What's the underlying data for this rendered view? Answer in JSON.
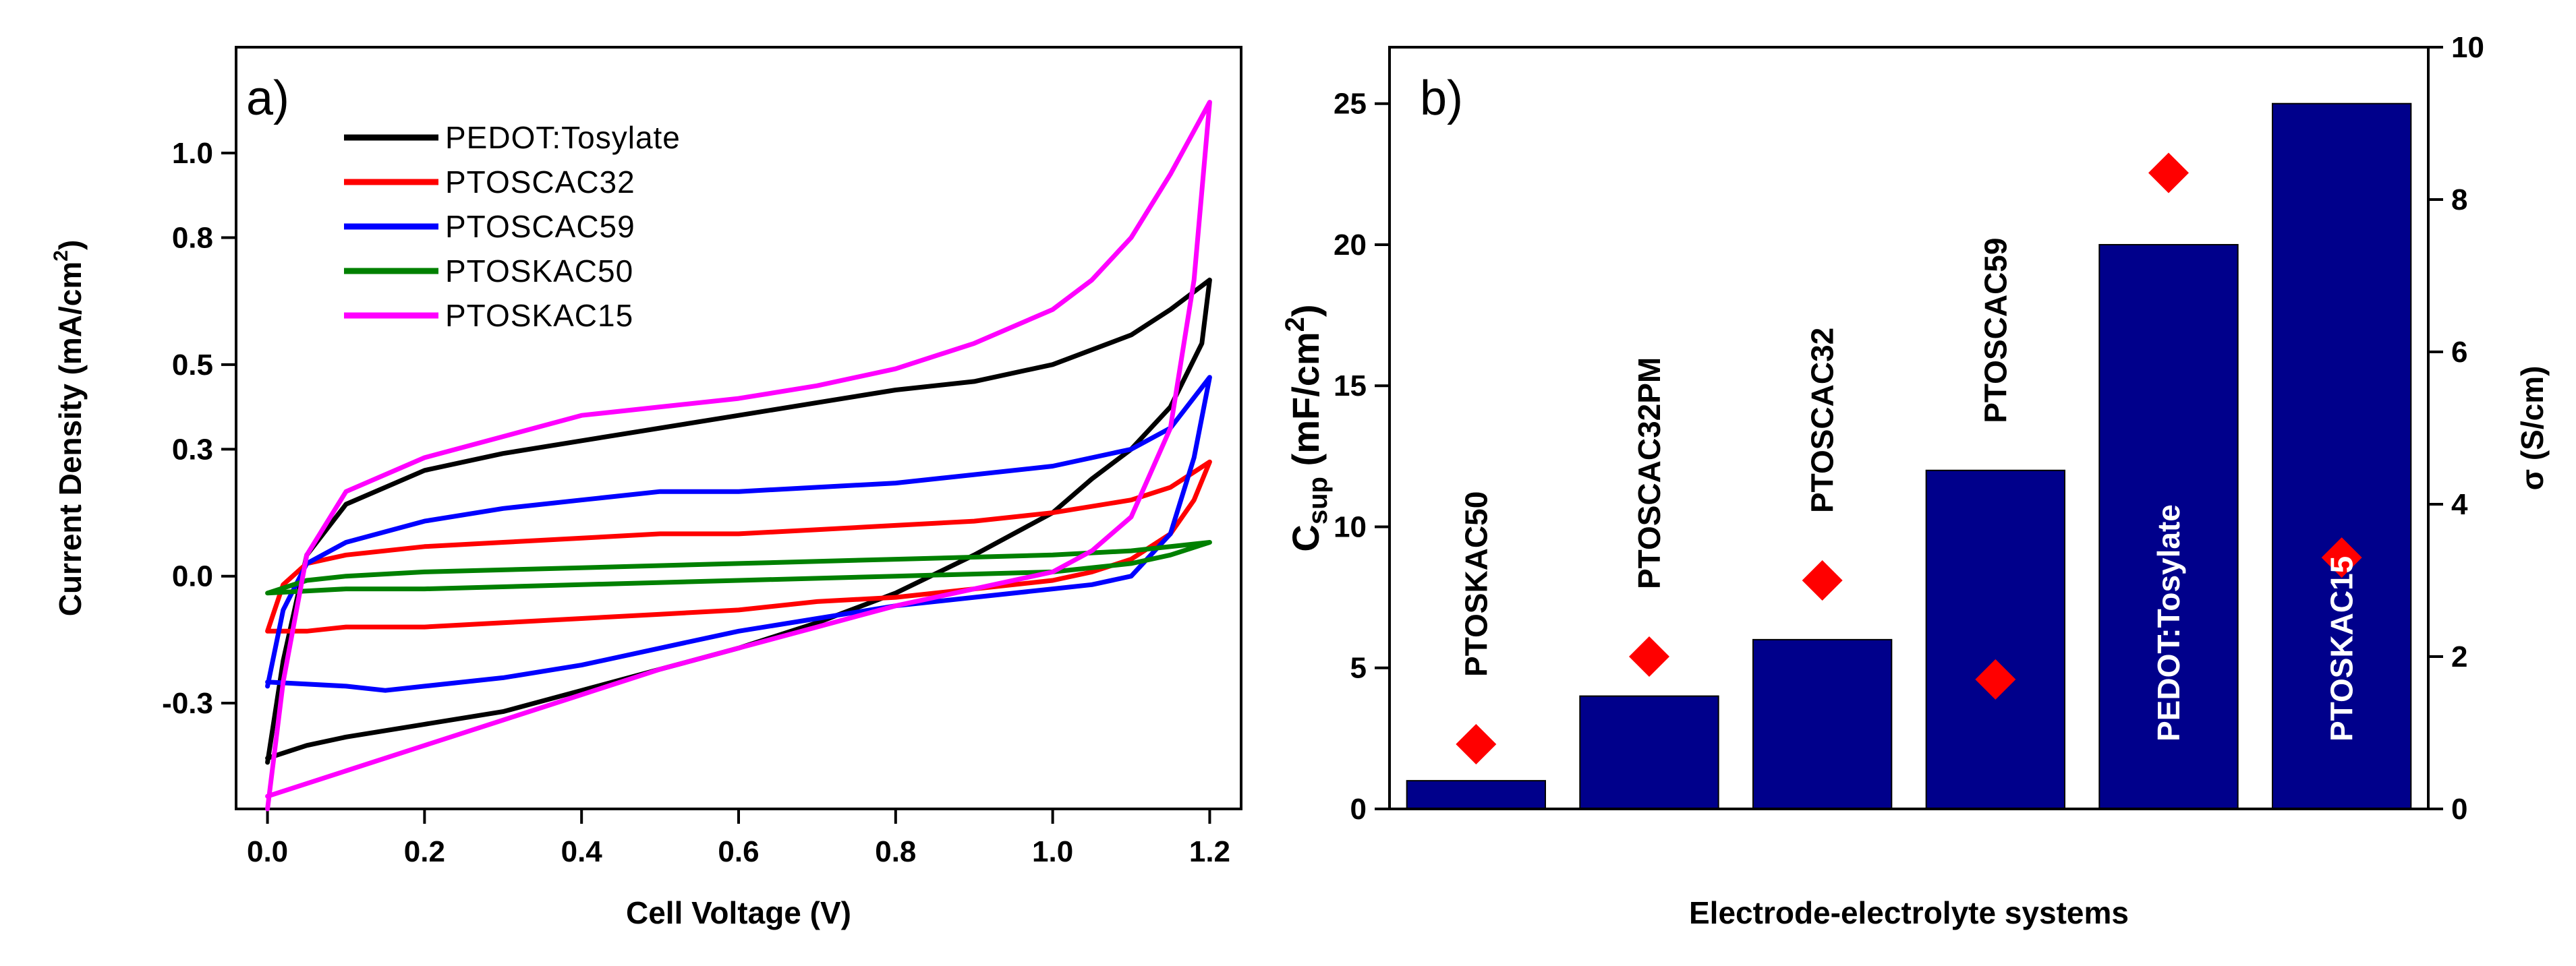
{
  "colors": {
    "black": "#000000",
    "red": "#ff0000",
    "blue": "#0000ff",
    "green": "#008000",
    "magenta": "#ff00ff",
    "bar": "#00008b",
    "diamond": "#ff0000"
  },
  "chart_data": [
    {
      "type": "line",
      "panel_label": "a)",
      "xlabel": "Cell Voltage (V)",
      "ylabel": "Current Density (mA/cm",
      "ylabel_sup": "2",
      "ylabel_end": ")",
      "xlim": [
        -0.04,
        1.24
      ],
      "ylim": [
        -0.55,
        1.25
      ],
      "xticks": [
        {
          "value": 0.0,
          "label": "0.0"
        },
        {
          "value": 0.2,
          "label": "0.2"
        },
        {
          "value": 0.4,
          "label": "0.4"
        },
        {
          "value": 0.6,
          "label": "0.6"
        },
        {
          "value": 0.8,
          "label": "0.8"
        },
        {
          "value": 1.0,
          "label": "1.0"
        },
        {
          "value": 1.2,
          "label": "1.2"
        }
      ],
      "yticks": [
        {
          "value": -0.3,
          "label": "-0.3"
        },
        {
          "value": 0.0,
          "label": "0.0"
        },
        {
          "value": 0.3,
          "label": "0.3"
        },
        {
          "value": 0.5,
          "label": "0.5"
        },
        {
          "value": 0.8,
          "label": "0.8"
        },
        {
          "value": 1.0,
          "label": "1.0"
        }
      ],
      "legend_position": "top-left",
      "series": [
        {
          "name": "PEDOT:Tosylate",
          "color": "#000000",
          "x": [
            0.0,
            0.02,
            0.05,
            0.1,
            0.2,
            0.3,
            0.4,
            0.5,
            0.6,
            0.7,
            0.8,
            0.9,
            1.0,
            1.1,
            1.15,
            1.2,
            1.19,
            1.15,
            1.1,
            1.05,
            1.0,
            0.9,
            0.8,
            0.7,
            0.6,
            0.5,
            0.4,
            0.3,
            0.2,
            0.1,
            0.05,
            0.0
          ],
          "y": [
            -0.44,
            -0.2,
            0.05,
            0.17,
            0.25,
            0.29,
            0.32,
            0.35,
            0.38,
            0.41,
            0.44,
            0.46,
            0.5,
            0.57,
            0.63,
            0.7,
            0.55,
            0.4,
            0.3,
            0.23,
            0.15,
            0.05,
            -0.04,
            -0.11,
            -0.17,
            -0.22,
            -0.27,
            -0.32,
            -0.35,
            -0.38,
            -0.4,
            -0.43
          ]
        },
        {
          "name": "PTOSCAC32",
          "color": "#ff0000",
          "x": [
            0.0,
            0.02,
            0.05,
            0.1,
            0.2,
            0.3,
            0.4,
            0.5,
            0.6,
            0.7,
            0.8,
            0.9,
            1.0,
            1.1,
            1.15,
            1.2,
            1.18,
            1.15,
            1.1,
            1.05,
            1.0,
            0.9,
            0.8,
            0.7,
            0.6,
            0.5,
            0.4,
            0.3,
            0.2,
            0.1,
            0.05,
            0.0
          ],
          "y": [
            -0.13,
            -0.02,
            0.03,
            0.05,
            0.07,
            0.08,
            0.09,
            0.1,
            0.1,
            0.11,
            0.12,
            0.13,
            0.15,
            0.18,
            0.21,
            0.27,
            0.18,
            0.1,
            0.04,
            0.01,
            -0.01,
            -0.03,
            -0.05,
            -0.06,
            -0.08,
            -0.09,
            -0.1,
            -0.11,
            -0.12,
            -0.12,
            -0.13,
            -0.13
          ]
        },
        {
          "name": "PTOSCAC59",
          "color": "#0000ff",
          "x": [
            0.0,
            0.02,
            0.05,
            0.1,
            0.2,
            0.3,
            0.4,
            0.5,
            0.6,
            0.7,
            0.8,
            0.9,
            1.0,
            1.1,
            1.15,
            1.2,
            1.18,
            1.15,
            1.1,
            1.05,
            1.0,
            0.9,
            0.8,
            0.7,
            0.6,
            0.5,
            0.4,
            0.3,
            0.2,
            0.15,
            0.1,
            0.0
          ],
          "y": [
            -0.26,
            -0.08,
            0.03,
            0.08,
            0.13,
            0.16,
            0.18,
            0.2,
            0.2,
            0.21,
            0.22,
            0.24,
            0.26,
            0.3,
            0.35,
            0.47,
            0.28,
            0.1,
            0.0,
            -0.02,
            -0.03,
            -0.05,
            -0.07,
            -0.1,
            -0.13,
            -0.17,
            -0.21,
            -0.24,
            -0.26,
            -0.27,
            -0.26,
            -0.25
          ]
        },
        {
          "name": "PTOSKAC50",
          "color": "#008000",
          "x": [
            0.0,
            0.05,
            0.1,
            0.2,
            0.4,
            0.6,
            0.8,
            1.0,
            1.1,
            1.2,
            1.15,
            1.1,
            1.0,
            0.8,
            0.6,
            0.4,
            0.2,
            0.1,
            0.0
          ],
          "y": [
            -0.04,
            -0.01,
            0.0,
            0.01,
            0.02,
            0.03,
            0.04,
            0.05,
            0.06,
            0.08,
            0.05,
            0.03,
            0.01,
            0.0,
            -0.01,
            -0.02,
            -0.03,
            -0.03,
            -0.04
          ]
        },
        {
          "name": "PTOSKAC15",
          "color": "#ff00ff",
          "x": [
            0.0,
            0.02,
            0.05,
            0.1,
            0.2,
            0.3,
            0.4,
            0.5,
            0.6,
            0.7,
            0.8,
            0.9,
            1.0,
            1.05,
            1.1,
            1.15,
            1.2,
            1.18,
            1.15,
            1.1,
            1.05,
            1.0,
            0.9,
            0.8,
            0.7,
            0.6,
            0.5,
            0.4,
            0.3,
            0.2,
            0.1,
            0.0
          ],
          "y": [
            -0.55,
            -0.25,
            0.05,
            0.2,
            0.28,
            0.33,
            0.38,
            0.4,
            0.42,
            0.45,
            0.49,
            0.55,
            0.63,
            0.7,
            0.8,
            0.95,
            1.12,
            0.7,
            0.35,
            0.14,
            0.06,
            0.01,
            -0.03,
            -0.07,
            -0.12,
            -0.17,
            -0.22,
            -0.28,
            -0.34,
            -0.4,
            -0.46,
            -0.52
          ]
        }
      ]
    },
    {
      "type": "bar",
      "panel_label": "b)",
      "xlabel": "Electrode-electrolyte systems",
      "ylabel_main": "C",
      "ylabel_sub": "sup",
      "ylabel_unit": " (mF/cm",
      "ylabel_sup": "2",
      "ylabel_end": ")",
      "y2label": "σ (S/cm)",
      "ylim": [
        0,
        27
      ],
      "y2lim": [
        0,
        10
      ],
      "yticks": [
        {
          "value": 0,
          "label": "0"
        },
        {
          "value": 5,
          "label": "5"
        },
        {
          "value": 10,
          "label": "10"
        },
        {
          "value": 15,
          "label": "15"
        },
        {
          "value": 20,
          "label": "20"
        },
        {
          "value": 25,
          "label": "25"
        }
      ],
      "y2ticks": [
        {
          "value": 0,
          "label": "0"
        },
        {
          "value": 2,
          "label": "2"
        },
        {
          "value": 4,
          "label": "4"
        },
        {
          "value": 6,
          "label": "6"
        },
        {
          "value": 8,
          "label": "8"
        },
        {
          "value": 10,
          "label": "10"
        }
      ],
      "categories": [
        "PTOSKAC50",
        "PTOSCAC32PM",
        "PTOSCAC32",
        "PTOSCAC59",
        "PEDOT:Tosylate",
        "PTOSKAC15"
      ],
      "series": [
        {
          "name": "Csup",
          "axis": "left",
          "values": [
            1,
            4,
            6,
            12,
            20,
            25
          ]
        },
        {
          "name": "σ",
          "axis": "right",
          "values": [
            0.85,
            2.0,
            3.0,
            1.7,
            8.35,
            3.3
          ]
        }
      ]
    }
  ]
}
